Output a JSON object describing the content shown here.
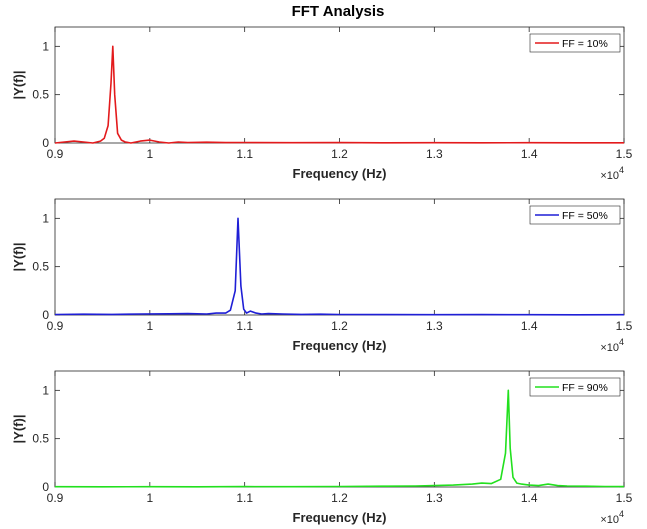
{
  "figure": {
    "title": "FFT Analysis"
  },
  "chart_data": [
    {
      "type": "line",
      "title": "FFT Analysis",
      "xlabel": "Frequency (Hz)",
      "ylabel": "|Y(f)|",
      "xlim": [
        9000,
        15000
      ],
      "ylim": [
        0,
        1.2
      ],
      "x_multiplier": "×10",
      "x_multiplier_exp": "4",
      "xticks": [
        9000,
        10000,
        11000,
        12000,
        13000,
        14000,
        15000
      ],
      "xtick_labels": [
        "0.9",
        "1",
        "1.1",
        "1.2",
        "1.3",
        "1.4",
        "1.5"
      ],
      "yticks": [
        0,
        0.5,
        1
      ],
      "ytick_labels": [
        "0",
        "0.5",
        "1"
      ],
      "legend": "top-right",
      "series": [
        {
          "name": "FF = 10%",
          "color": "#e31a1c",
          "x": [
            9000,
            9100,
            9200,
            9300,
            9400,
            9480,
            9520,
            9560,
            9590,
            9610,
            9630,
            9660,
            9700,
            9740,
            9800,
            9900,
            10000,
            10100,
            10200,
            10300,
            10400,
            10600,
            10800,
            11000,
            11500,
            12000,
            12500,
            13000,
            13500,
            14000,
            14500,
            15000
          ],
          "y": [
            0.0,
            0.01,
            0.02,
            0.01,
            0.0,
            0.02,
            0.05,
            0.18,
            0.62,
            1.0,
            0.5,
            0.1,
            0.03,
            0.01,
            0.0,
            0.02,
            0.03,
            0.01,
            0.0,
            0.01,
            0.005,
            0.008,
            0.004,
            0.005,
            0.003,
            0.004,
            0.002,
            0.003,
            0.002,
            0.003,
            0.002,
            0.002
          ]
        }
      ]
    },
    {
      "type": "line",
      "xlabel": "Frequency (Hz)",
      "ylabel": "|Y(f)|",
      "xlim": [
        9000,
        15000
      ],
      "ylim": [
        0,
        1.2
      ],
      "x_multiplier": "×10",
      "x_multiplier_exp": "4",
      "xticks": [
        9000,
        10000,
        11000,
        12000,
        13000,
        14000,
        15000
      ],
      "xtick_labels": [
        "0.9",
        "1",
        "1.1",
        "1.2",
        "1.3",
        "1.4",
        "1.5"
      ],
      "yticks": [
        0,
        0.5,
        1
      ],
      "ytick_labels": [
        "0",
        "0.5",
        "1"
      ],
      "legend": "top-right",
      "series": [
        {
          "name": "FF = 50%",
          "color": "#1f1fd6",
          "x": [
            9000,
            9300,
            9600,
            9900,
            10200,
            10400,
            10600,
            10700,
            10800,
            10850,
            10900,
            10930,
            10960,
            10990,
            11020,
            11060,
            11120,
            11180,
            11250,
            11400,
            11600,
            11800,
            12000,
            12500,
            13000,
            13500,
            14000,
            14500,
            15000
          ],
          "y": [
            0.005,
            0.008,
            0.006,
            0.01,
            0.012,
            0.015,
            0.01,
            0.02,
            0.02,
            0.05,
            0.25,
            1.0,
            0.3,
            0.06,
            0.02,
            0.04,
            0.02,
            0.01,
            0.015,
            0.01,
            0.006,
            0.008,
            0.005,
            0.004,
            0.003,
            0.004,
            0.003,
            0.002,
            0.003
          ]
        }
      ]
    },
    {
      "type": "line",
      "xlabel": "Frequency (Hz)",
      "ylabel": "|Y(f)|",
      "xlim": [
        9000,
        15000
      ],
      "ylim": [
        0,
        1.2
      ],
      "x_multiplier": "×10",
      "x_multiplier_exp": "4",
      "xticks": [
        9000,
        10000,
        11000,
        12000,
        13000,
        14000,
        15000
      ],
      "xtick_labels": [
        "0.9",
        "1",
        "1.1",
        "1.2",
        "1.3",
        "1.4",
        "1.5"
      ],
      "yticks": [
        0,
        0.5,
        1
      ],
      "ytick_labels": [
        "0",
        "0.5",
        "1"
      ],
      "legend": "top-right",
      "series": [
        {
          "name": "FF = 90%",
          "color": "#22e01e",
          "x": [
            9000,
            9500,
            10000,
            10500,
            11000,
            11500,
            12000,
            12500,
            12800,
            13000,
            13200,
            13400,
            13500,
            13600,
            13700,
            13750,
            13780,
            13800,
            13830,
            13870,
            13920,
            14000,
            14100,
            14200,
            14300,
            14400,
            14600,
            14800,
            15000
          ],
          "y": [
            0.003,
            0.002,
            0.003,
            0.002,
            0.004,
            0.003,
            0.005,
            0.008,
            0.01,
            0.015,
            0.02,
            0.03,
            0.04,
            0.035,
            0.08,
            0.35,
            1.0,
            0.4,
            0.1,
            0.04,
            0.03,
            0.02,
            0.015,
            0.03,
            0.015,
            0.01,
            0.008,
            0.005,
            0.004
          ]
        }
      ]
    }
  ]
}
